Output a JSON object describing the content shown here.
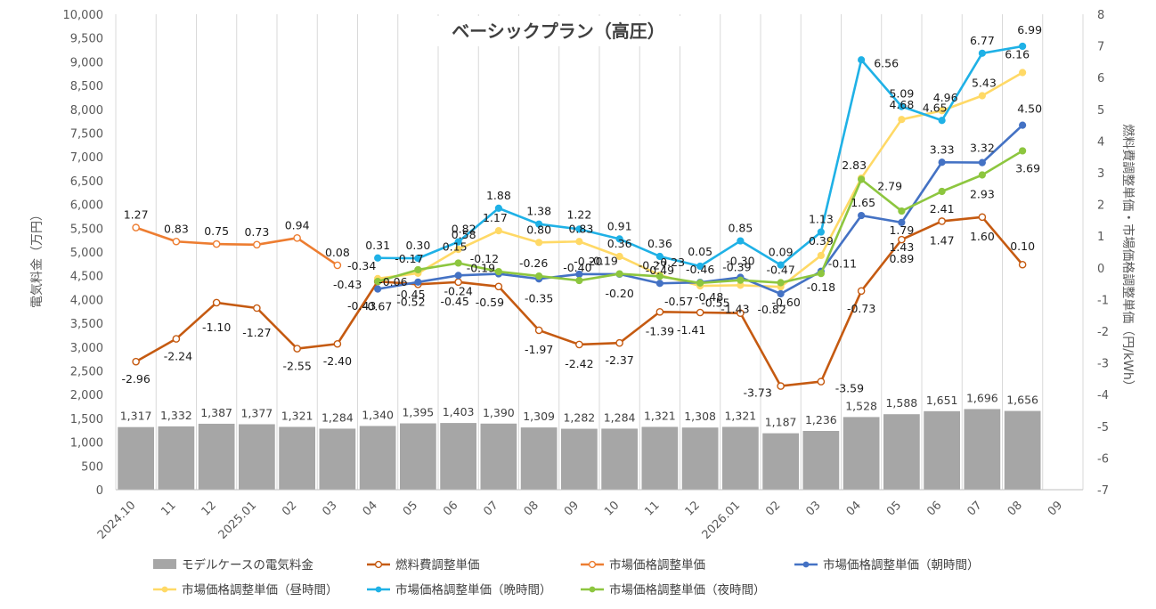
{
  "chart_data": {
    "type": "bar+line",
    "title": "ベーシックプラン（高圧）",
    "ylabel_left": "電気料金（万円）",
    "ylabel_right": "燃料費調整単価・市場価格調整単価（円/kWh）",
    "ylim_left": [
      0,
      10000
    ],
    "ylim_right": [
      -7,
      8
    ],
    "yticks_left": [
      "0",
      "500",
      "1,000",
      "1,500",
      "2,000",
      "2,500",
      "3,000",
      "3,500",
      "4,000",
      "4,500",
      "5,000",
      "5,500",
      "6,000",
      "6,500",
      "7,000",
      "7,500",
      "8,000",
      "8,500",
      "9,000",
      "9,500",
      "10,000"
    ],
    "yticks_right": [
      "-7",
      "-6",
      "-5",
      "-4",
      "-3",
      "-2",
      "-1",
      "0",
      "1",
      "2",
      "3",
      "4",
      "5",
      "6",
      "7",
      "8"
    ],
    "categories": [
      "2024.10",
      "11",
      "12",
      "2025.01",
      "02",
      "03",
      "04",
      "05",
      "06",
      "07",
      "08",
      "09",
      "10",
      "11",
      "12",
      "2026.01",
      "02",
      "03",
      "04",
      "05",
      "06",
      "07",
      "08",
      "09"
    ],
    "bars": {
      "name": "モデルケースの電気料金",
      "color": "#a6a6a6",
      "values": [
        1317,
        1332,
        1387,
        1377,
        1321,
        1284,
        1340,
        1395,
        1403,
        1390,
        1309,
        1282,
        1284,
        1321,
        1308,
        1321,
        1187,
        1236,
        1528,
        1588,
        1651,
        1696,
        1656,
        null
      ],
      "labels": [
        "1,317",
        "1,332",
        "1,387",
        "1,377",
        "1,321",
        "1,284",
        "1,340",
        "1,395",
        "1,403",
        "1,390",
        "1,309",
        "1,282",
        "1,284",
        "1,321",
        "1,308",
        "1,321",
        "1,187",
        "1,236",
        "1,528",
        "1,588",
        "1,651",
        "1,696",
        "1,656",
        ""
      ]
    },
    "series": [
      {
        "name": "燃料費調整単価",
        "color": "#c55a11",
        "marker": "hollow",
        "values": [
          -2.96,
          -2.24,
          -1.1,
          -1.27,
          -2.55,
          -2.4,
          -0.43,
          -0.52,
          -0.45,
          -0.59,
          -1.97,
          -2.42,
          -2.37,
          -1.39,
          -1.41,
          -1.43,
          -3.73,
          -3.59,
          -0.73,
          0.89,
          1.47,
          1.6,
          0.1,
          null
        ],
        "labels": [
          "-2.96",
          "-2.24",
          "-1.10",
          "-1.27",
          "-2.55",
          "-2.40",
          "-0.43",
          "-0.52",
          "-0.45",
          "-0.59",
          "-1.97",
          "-2.42",
          "-2.37",
          "-1.39",
          "-1.41",
          "-1.43",
          "-3.73",
          "-3.59",
          "-0.73",
          "0.89",
          "1.47",
          "1.60",
          "0.10",
          ""
        ]
      },
      {
        "name": "市場価格調整単価",
        "color": "#ed7d31",
        "marker": "hollow",
        "values": [
          1.27,
          0.83,
          0.75,
          0.73,
          0.94,
          0.08,
          null,
          null,
          null,
          null,
          null,
          null,
          null,
          null,
          null,
          null,
          null,
          null,
          null,
          null,
          null,
          null,
          null,
          null
        ],
        "labels": [
          "1.27",
          "0.83",
          "0.75",
          "0.73",
          "0.94",
          "0.08",
          "",
          "",
          "",
          "",
          "",
          "",
          "",
          "",
          "",
          "",
          "",
          "",
          "",
          "",
          "",
          "",
          "",
          ""
        ]
      },
      {
        "name": "市場価格調整単価（朝時間）",
        "color": "#4472c4",
        "marker": "filled",
        "values": [
          null,
          null,
          null,
          null,
          null,
          null,
          -0.67,
          -0.45,
          -0.24,
          -0.19,
          -0.35,
          -0.2,
          -0.2,
          -0.49,
          -0.46,
          -0.3,
          -0.82,
          -0.11,
          1.65,
          1.43,
          3.33,
          3.32,
          4.5,
          null
        ],
        "labels": [
          "",
          "",
          "",
          "",
          "",
          "",
          "-0.67",
          "-0.45",
          "-0.24",
          "-0.19",
          "-0.35",
          "-0.20",
          "-0.20",
          "-0.49",
          "-0.46",
          "-0.30",
          "-0.82",
          "-0.11",
          "1.65",
          "1.43",
          "3.33",
          "3.32",
          "4.50",
          ""
        ]
      },
      {
        "name": "市場価格調整単価（昼時間）",
        "color": "#ffd966",
        "marker": "filled",
        "values": [
          null,
          null,
          null,
          null,
          null,
          null,
          -0.34,
          -0.17,
          0.58,
          1.17,
          0.8,
          0.83,
          0.36,
          -0.23,
          -0.57,
          -0.55,
          -0.6,
          0.39,
          2.83,
          4.68,
          4.96,
          5.43,
          6.16,
          null
        ],
        "labels": [
          "",
          "",
          "",
          "",
          "",
          "",
          "-0.34",
          "-0.17",
          "0.58",
          "1.17",
          "0.80",
          "0.83",
          "0.36",
          "-0.23",
          "-0.57",
          "-0.55",
          "-0.60",
          "0.39",
          "2.83",
          "4.68",
          "4.96",
          "5.43",
          "6.16",
          ""
        ]
      },
      {
        "name": "市場価格調整単価（晩時間）",
        "color": "#1fb1e6",
        "marker": "filled",
        "values": [
          null,
          null,
          null,
          null,
          null,
          null,
          0.31,
          0.3,
          0.82,
          1.88,
          1.38,
          1.22,
          0.91,
          0.36,
          0.05,
          0.85,
          0.09,
          1.13,
          6.56,
          5.09,
          4.65,
          6.77,
          6.99,
          null
        ],
        "labels": [
          "",
          "",
          "",
          "",
          "",
          "",
          "0.31",
          "0.30",
          "0.82",
          "1.88",
          "1.38",
          "1.22",
          "0.91",
          "0.36",
          "0.05",
          "0.85",
          "0.09",
          "1.13",
          "6.56",
          "5.09",
          "4.65",
          "6.77",
          "6.99",
          ""
        ]
      },
      {
        "name": "市場価格調整単価（夜時間）",
        "color": "#8dc63f",
        "marker": "filled",
        "values": [
          null,
          null,
          null,
          null,
          null,
          null,
          -0.43,
          -0.06,
          0.15,
          -0.12,
          -0.26,
          -0.4,
          -0.19,
          -0.27,
          -0.48,
          -0.39,
          -0.47,
          -0.18,
          2.79,
          1.79,
          2.41,
          2.93,
          3.69,
          null
        ],
        "labels": [
          "",
          "",
          "",
          "",
          "",
          "",
          "-0.43",
          "-0.06",
          "0.15",
          "-0.12",
          "-0.26",
          "-0.40",
          "-0.19",
          "-0.27",
          "-0.48",
          "-0.39",
          "-0.47",
          "-0.18",
          "2.79",
          "1.79",
          "2.41",
          "2.93",
          "3.69",
          ""
        ]
      }
    ],
    "legend_position": "bottom",
    "grid": "vertical"
  }
}
